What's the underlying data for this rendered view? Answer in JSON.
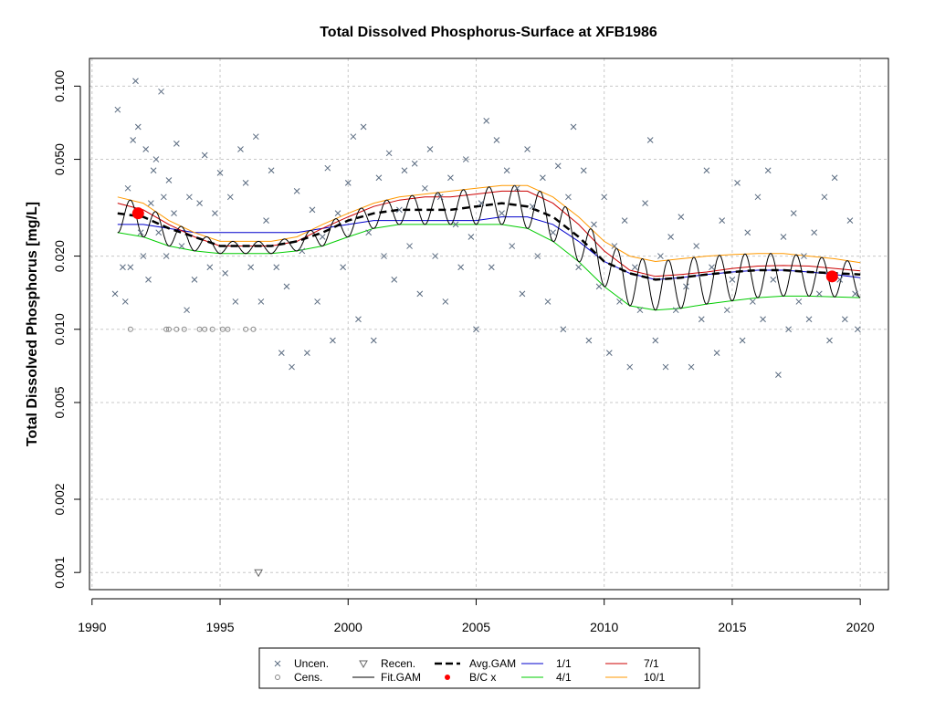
{
  "chart_data": {
    "type": "scatter",
    "title": "Total Dissolved Phosphorus-Surface at XFB1986",
    "xlabel": "",
    "ylabel": "Total Dissolved Phosphorus [mg/L]",
    "y_scale": "log",
    "xlim": [
      1989.9,
      2021.1
    ],
    "ylim": [
      0.00085,
      0.13
    ],
    "x_ticks": [
      1990,
      1995,
      2000,
      2005,
      2010,
      2015,
      2020
    ],
    "x_tick_labels": [
      "1990",
      "1995",
      "2000",
      "2005",
      "2010",
      "2015",
      "2020"
    ],
    "y_ticks": [
      0.001,
      0.002,
      0.005,
      0.01,
      0.02,
      0.05,
      0.1
    ],
    "y_tick_labels": [
      "0.001",
      "0.002",
      "0.005",
      "0.010",
      "0.020",
      "0.050",
      "0.100"
    ],
    "grid": true,
    "legend_position": "bottom",
    "legend": [
      {
        "label": "Uncen.",
        "symbol": "x",
        "color": "#5a6b80"
      },
      {
        "label": "Cens.",
        "symbol": "circle",
        "color": "#888888"
      },
      {
        "label": "Recen.",
        "symbol": "triangle-down",
        "color": "#666666"
      },
      {
        "label": "Fit.GAM",
        "symbol": "line",
        "color": "#000000"
      },
      {
        "label": "Avg.GAM",
        "symbol": "dashed",
        "color": "#000000"
      },
      {
        "label": "B/C x",
        "symbol": "dot",
        "color": "#ff0000"
      },
      {
        "label": "1/1",
        "symbol": "line",
        "color": "#0000cc"
      },
      {
        "label": "4/1",
        "symbol": "line",
        "color": "#00cc00"
      },
      {
        "label": "7/1",
        "symbol": "line",
        "color": "#cc0000"
      },
      {
        "label": "10/1",
        "symbol": "line",
        "color": "#ff9900"
      }
    ],
    "series": [
      {
        "name": "Avg.GAM",
        "x": [
          1991,
          1992,
          1993,
          1994,
          1995,
          1996,
          1997,
          1998,
          1999,
          2000,
          2001,
          2002,
          2003,
          2004,
          2005,
          2006,
          2007,
          2008,
          2009,
          2010,
          2011,
          2012,
          2013,
          2014,
          2015,
          2016,
          2017,
          2018,
          2019,
          2020
        ],
        "y": [
          0.03,
          0.029,
          0.026,
          0.024,
          0.022,
          0.022,
          0.022,
          0.023,
          0.025,
          0.028,
          0.03,
          0.031,
          0.031,
          0.031,
          0.032,
          0.033,
          0.032,
          0.029,
          0.024,
          0.019,
          0.017,
          0.016,
          0.0163,
          0.0168,
          0.0172,
          0.0175,
          0.0175,
          0.0172,
          0.017,
          0.0168
        ]
      },
      {
        "name": "1/1",
        "x": [
          1991,
          1992,
          1993,
          1994,
          1995,
          1996,
          1997,
          1998,
          1999,
          2000,
          2001,
          2002,
          2003,
          2004,
          2005,
          2006,
          2007,
          2008,
          2009,
          2010,
          2011,
          2012,
          2013,
          2014,
          2015,
          2016,
          2017,
          2018,
          2019,
          2020
        ],
        "y": [
          0.027,
          0.027,
          0.026,
          0.025,
          0.025,
          0.025,
          0.025,
          0.025,
          0.026,
          0.027,
          0.028,
          0.028,
          0.028,
          0.028,
          0.028,
          0.029,
          0.029,
          0.027,
          0.023,
          0.019,
          0.017,
          0.016,
          0.0163,
          0.0168,
          0.0172,
          0.0175,
          0.0175,
          0.0172,
          0.0168,
          0.0163
        ]
      },
      {
        "name": "4/1",
        "x": [
          1991,
          1992,
          1993,
          1994,
          1995,
          1996,
          1997,
          1998,
          1999,
          2000,
          2001,
          2002,
          2003,
          2004,
          2005,
          2006,
          2007,
          2008,
          2009,
          2010,
          2011,
          2012,
          2013,
          2014,
          2015,
          2016,
          2017,
          2018,
          2019,
          2020
        ],
        "y": [
          0.025,
          0.024,
          0.022,
          0.021,
          0.0205,
          0.0205,
          0.0205,
          0.021,
          0.022,
          0.024,
          0.026,
          0.027,
          0.027,
          0.027,
          0.027,
          0.027,
          0.026,
          0.023,
          0.019,
          0.015,
          0.0125,
          0.012,
          0.0122,
          0.0127,
          0.0131,
          0.0135,
          0.0137,
          0.0137,
          0.0136,
          0.0135
        ]
      },
      {
        "name": "7/1",
        "x": [
          1991,
          1992,
          1993,
          1994,
          1995,
          1996,
          1997,
          1998,
          1999,
          2000,
          2001,
          2002,
          2003,
          2004,
          2005,
          2006,
          2007,
          2008,
          2009,
          2010,
          2011,
          2012,
          2013,
          2014,
          2015,
          2016,
          2017,
          2018,
          2019,
          2020
        ],
        "y": [
          0.033,
          0.031,
          0.027,
          0.024,
          0.022,
          0.022,
          0.022,
          0.023,
          0.026,
          0.029,
          0.032,
          0.034,
          0.035,
          0.035,
          0.036,
          0.037,
          0.037,
          0.033,
          0.027,
          0.021,
          0.0175,
          0.0165,
          0.0168,
          0.0172,
          0.0178,
          0.0182,
          0.0183,
          0.0182,
          0.0178,
          0.0174
        ]
      },
      {
        "name": "10/1",
        "x": [
          1991,
          1992,
          1993,
          1994,
          1995,
          1996,
          1997,
          1998,
          1999,
          2000,
          2001,
          2002,
          2003,
          2004,
          2005,
          2006,
          2007,
          2008,
          2009,
          2010,
          2011,
          2012,
          2013,
          2014,
          2015,
          2016,
          2017,
          2018,
          2019,
          2020
        ],
        "y": [
          0.035,
          0.033,
          0.028,
          0.025,
          0.023,
          0.023,
          0.023,
          0.024,
          0.027,
          0.03,
          0.033,
          0.035,
          0.036,
          0.037,
          0.038,
          0.039,
          0.039,
          0.035,
          0.029,
          0.023,
          0.02,
          0.019,
          0.0195,
          0.02,
          0.0203,
          0.0205,
          0.0205,
          0.02,
          0.0195,
          0.0188
        ]
      },
      {
        "name": "B/C x",
        "x": [
          1991.8,
          2018.9
        ],
        "y": [
          0.03,
          0.0165
        ]
      },
      {
        "name": "Recen.",
        "x": [
          1996.5
        ],
        "y": [
          0.001
        ]
      },
      {
        "name": "Cens.",
        "x": [
          1991.5,
          1992.9,
          1993.0,
          1993.3,
          1993.6,
          1994.2,
          1994.4,
          1994.7,
          1995.1,
          1995.3,
          1996.0,
          1996.3
        ],
        "y": [
          0.01,
          0.01,
          0.01,
          0.01,
          0.01,
          0.01,
          0.01,
          0.01,
          0.01,
          0.01,
          0.01,
          0.01
        ]
      },
      {
        "name": "Uncen.",
        "x": [
          1990.9,
          1991.0,
          1991.2,
          1991.3,
          1991.4,
          1991.5,
          1991.6,
          1991.7,
          1991.8,
          1991.9,
          1992.0,
          1992.1,
          1992.2,
          1992.3,
          1992.4,
          1992.5,
          1992.6,
          1992.7,
          1992.8,
          1992.9,
          1993.0,
          1993.2,
          1993.3,
          1993.5,
          1993.7,
          1993.8,
          1994.0,
          1994.2,
          1994.4,
          1994.6,
          1994.8,
          1995.0,
          1995.2,
          1995.4,
          1995.6,
          1995.8,
          1996.0,
          1996.2,
          1996.4,
          1996.6,
          1996.8,
          1997.0,
          1997.2,
          1997.4,
          1997.6,
          1997.8,
          1998.0,
          1998.2,
          1998.4,
          1998.6,
          1998.8,
          1999.0,
          1999.2,
          1999.4,
          1999.6,
          1999.8,
          2000.0,
          2000.2,
          2000.4,
          2000.6,
          2000.8,
          2001.0,
          2001.2,
          2001.4,
          2001.6,
          2001.8,
          2002.0,
          2002.2,
          2002.4,
          2002.6,
          2002.8,
          2003.0,
          2003.2,
          2003.4,
          2003.6,
          2003.8,
          2004.0,
          2004.2,
          2004.4,
          2004.6,
          2004.8,
          2005.0,
          2005.2,
          2005.4,
          2005.6,
          2005.8,
          2006.0,
          2006.2,
          2006.4,
          2006.6,
          2006.8,
          2007.0,
          2007.2,
          2007.4,
          2007.6,
          2007.8,
          2008.0,
          2008.2,
          2008.4,
          2008.6,
          2008.8,
          2009.0,
          2009.2,
          2009.4,
          2009.6,
          2009.8,
          2010.0,
          2010.2,
          2010.4,
          2010.6,
          2010.8,
          2011.0,
          2011.2,
          2011.4,
          2011.6,
          2011.8,
          2012.0,
          2012.2,
          2012.4,
          2012.6,
          2012.8,
          2013.0,
          2013.2,
          2013.4,
          2013.6,
          2013.8,
          2014.0,
          2014.2,
          2014.4,
          2014.6,
          2014.8,
          2015.0,
          2015.2,
          2015.4,
          2015.6,
          2015.8,
          2016.0,
          2016.2,
          2016.4,
          2016.6,
          2016.8,
          2017.0,
          2017.2,
          2017.4,
          2017.6,
          2017.8,
          2018.0,
          2018.2,
          2018.4,
          2018.6,
          2018.8,
          2019.0,
          2019.2,
          2019.4,
          2019.6,
          2019.8,
          2019.9
        ],
        "y": [
          0.014,
          0.08,
          0.018,
          0.013,
          0.038,
          0.018,
          0.06,
          0.105,
          0.068,
          0.025,
          0.02,
          0.055,
          0.016,
          0.033,
          0.045,
          0.05,
          0.025,
          0.095,
          0.035,
          0.02,
          0.041,
          0.03,
          0.058,
          0.022,
          0.012,
          0.035,
          0.016,
          0.033,
          0.052,
          0.018,
          0.03,
          0.044,
          0.017,
          0.035,
          0.013,
          0.055,
          0.04,
          0.018,
          0.062,
          0.013,
          0.028,
          0.045,
          0.018,
          0.008,
          0.015,
          0.007,
          0.037,
          0.021,
          0.008,
          0.031,
          0.013,
          0.024,
          0.046,
          0.009,
          0.03,
          0.018,
          0.04,
          0.062,
          0.011,
          0.068,
          0.025,
          0.009,
          0.042,
          0.02,
          0.053,
          0.016,
          0.031,
          0.045,
          0.022,
          0.048,
          0.014,
          0.038,
          0.055,
          0.02,
          0.035,
          0.013,
          0.042,
          0.027,
          0.018,
          0.05,
          0.024,
          0.01,
          0.033,
          0.072,
          0.018,
          0.06,
          0.03,
          0.045,
          0.022,
          0.038,
          0.014,
          0.055,
          0.032,
          0.02,
          0.042,
          0.013,
          0.025,
          0.047,
          0.01,
          0.035,
          0.068,
          0.018,
          0.045,
          0.009,
          0.027,
          0.015,
          0.035,
          0.008,
          0.022,
          0.013,
          0.028,
          0.007,
          0.018,
          0.012,
          0.033,
          0.06,
          0.009,
          0.02,
          0.007,
          0.024,
          0.012,
          0.029,
          0.015,
          0.007,
          0.022,
          0.011,
          0.045,
          0.018,
          0.008,
          0.028,
          0.012,
          0.016,
          0.04,
          0.009,
          0.025,
          0.013,
          0.035,
          0.011,
          0.045,
          0.016,
          0.0065,
          0.024,
          0.01,
          0.03,
          0.013,
          0.02,
          0.011,
          0.025,
          0.014,
          0.035,
          0.009,
          0.042,
          0.016,
          0.011,
          0.028,
          0.014,
          0.01
        ]
      }
    ]
  }
}
